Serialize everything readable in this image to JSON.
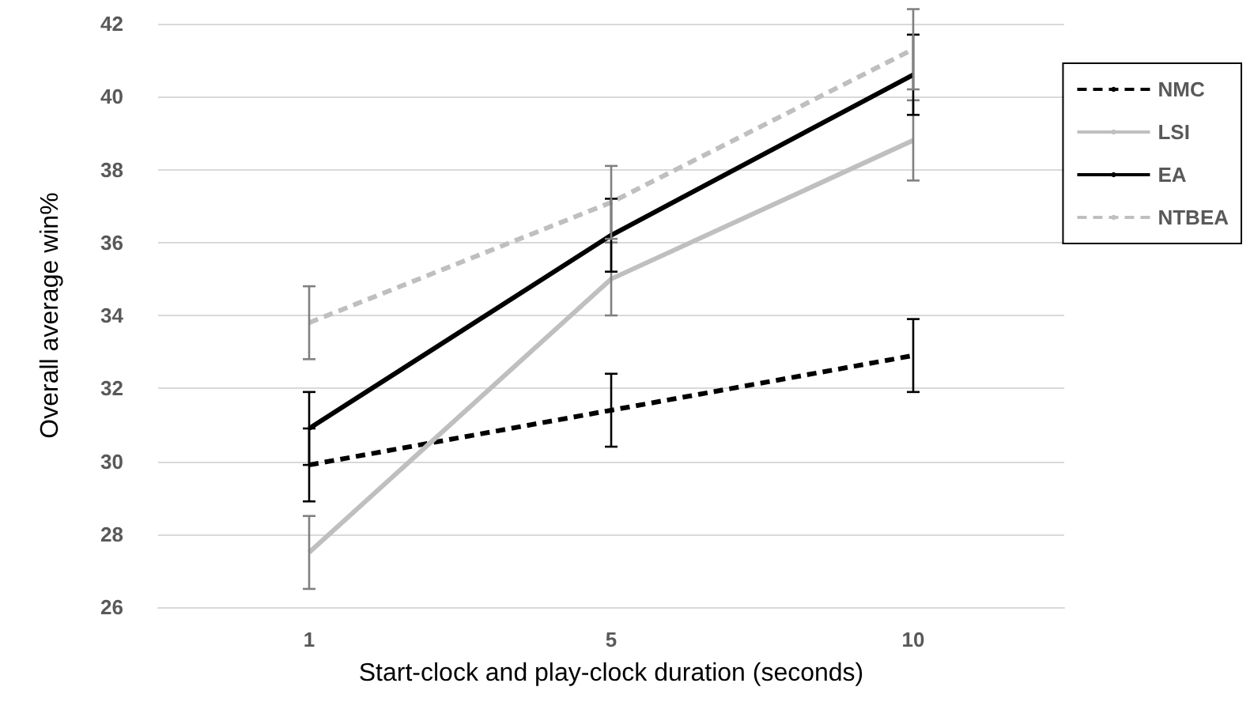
{
  "chart_data": {
    "type": "line",
    "xlabel": "Start-clock and play-clock duration (seconds)",
    "ylabel": "Overall average win%",
    "categories": [
      "1",
      "5",
      "10"
    ],
    "series": [
      {
        "name": "NMC",
        "color": "#000000",
        "line_style": "dashed",
        "values": [
          29.9,
          31.4,
          32.9
        ],
        "errors": [
          1,
          1,
          1
        ]
      },
      {
        "name": "LSI",
        "color": "#bfbfbf",
        "line_style": "solid",
        "values": [
          27.5,
          35.0,
          38.8
        ],
        "errors": [
          1,
          1,
          1.1
        ]
      },
      {
        "name": "EA",
        "color": "#000000",
        "line_style": "solid",
        "values": [
          30.9,
          36.2,
          40.6
        ],
        "errors": [
          1,
          1,
          1.1
        ]
      },
      {
        "name": "NTBEA",
        "color": "#bfbfbf",
        "line_style": "dashed",
        "values": [
          33.8,
          37.1,
          41.3
        ],
        "errors": [
          1,
          1,
          1.1
        ]
      }
    ],
    "ylim": [
      26,
      42
    ],
    "yticks": [
      26,
      28,
      30,
      32,
      34,
      36,
      38,
      40,
      42
    ],
    "grid": "y",
    "legend": "right",
    "marker": "none"
  }
}
